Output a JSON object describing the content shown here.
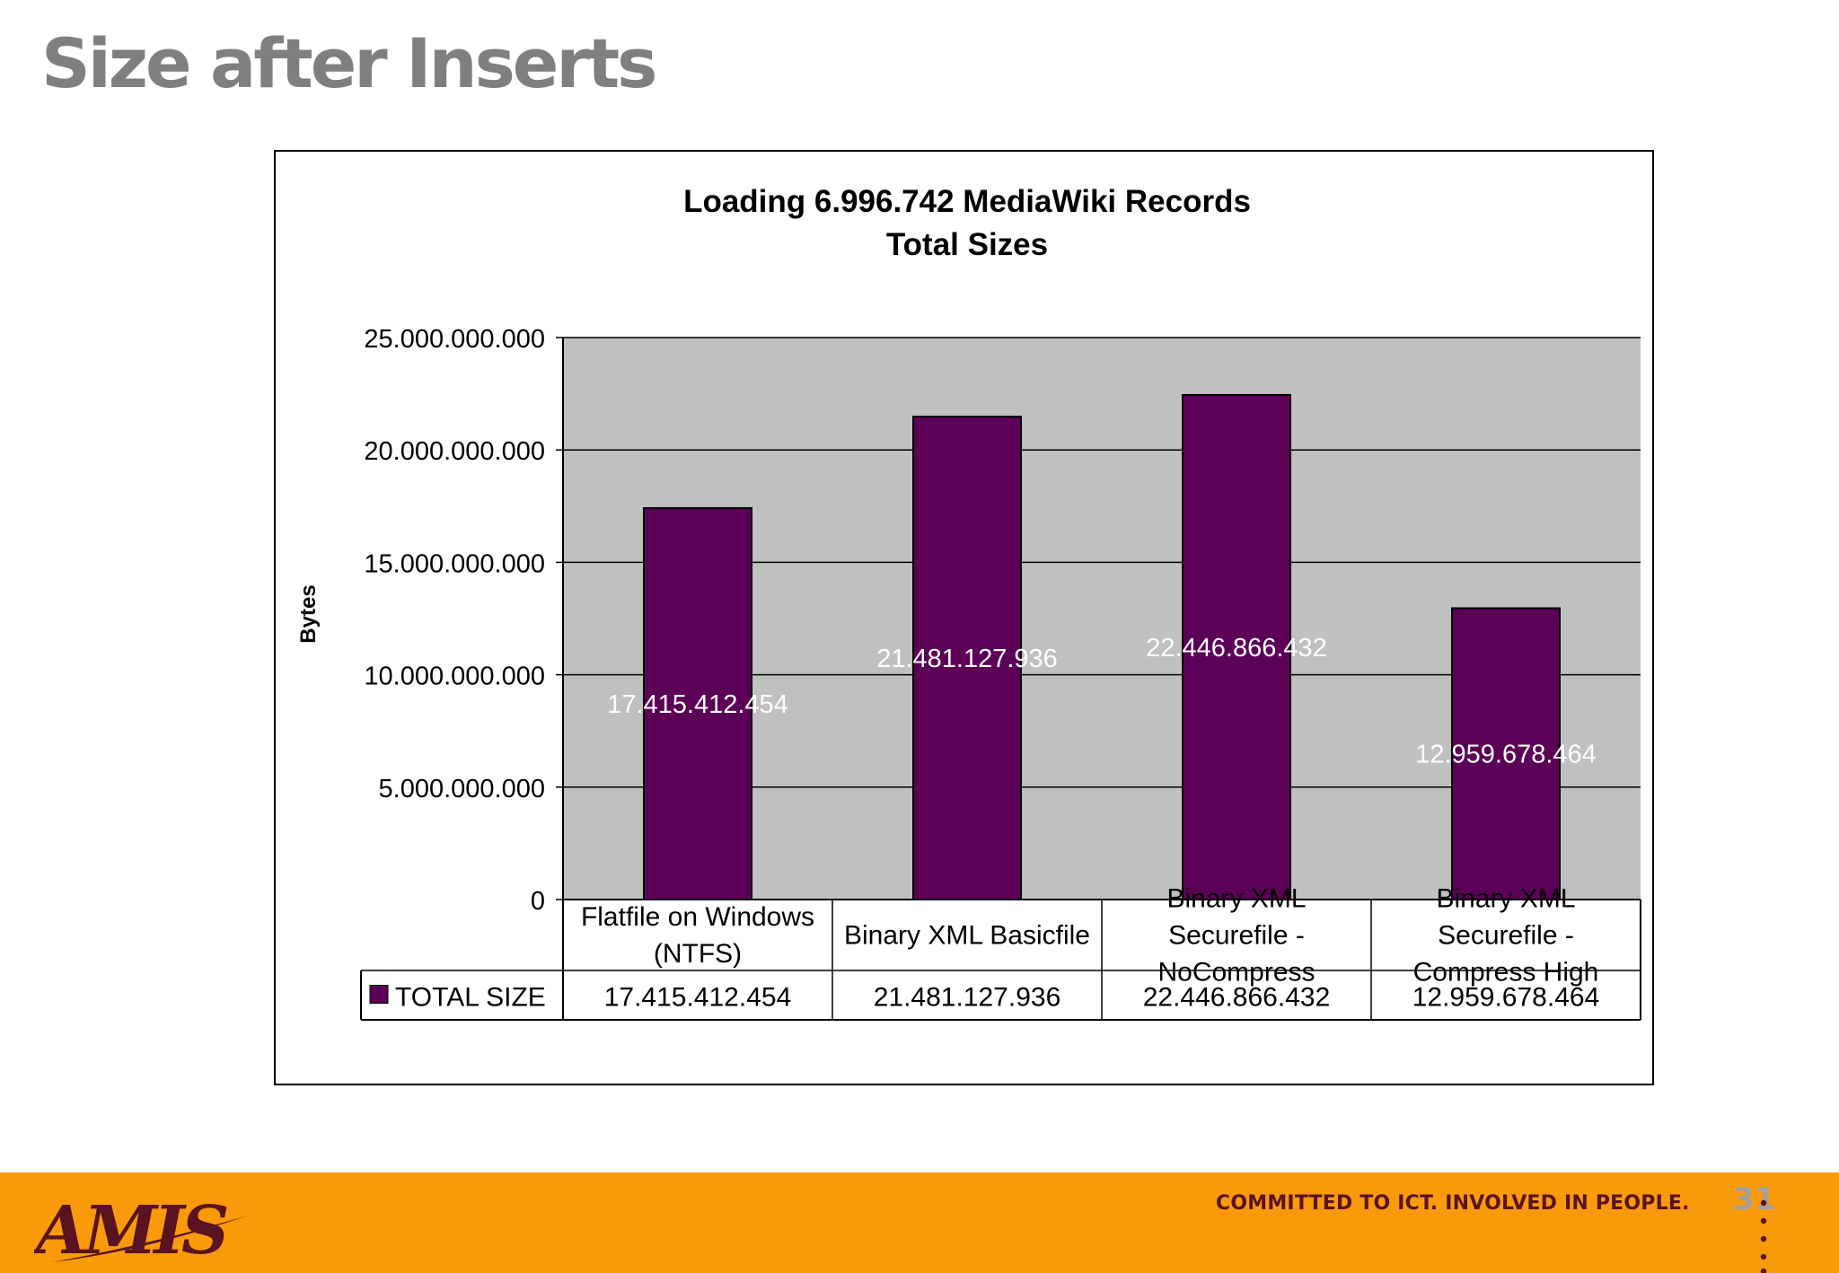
{
  "slide": {
    "title": "Size after Inserts",
    "page_number": "31"
  },
  "footer": {
    "logo_text": "AMIS",
    "slogan": "COMMITTED TO ICT. INVOLVED IN PEOPLE.",
    "background_color": "#f99a0b",
    "brand_color": "#5a1320"
  },
  "chart_data": {
    "type": "bar",
    "title": "Loading 6.996.742 MediaWiki Records",
    "subtitle": "Total Sizes",
    "xlabel": "",
    "ylabel": "Bytes",
    "ylim": [
      0,
      25000000000
    ],
    "y_ticks": [
      0,
      5000000000,
      10000000000,
      15000000000,
      20000000000,
      25000000000
    ],
    "y_tick_labels": [
      "0",
      "5.000.000.000",
      "10.000.000.000",
      "15.000.000.000",
      "20.000.000.000",
      "25.000.000.000"
    ],
    "grid": true,
    "categories": [
      [
        "Flatfile on Windows",
        "(NTFS)"
      ],
      [
        "Binary XML Basicfile"
      ],
      [
        "Binary XML",
        "Securefile -",
        "NoCompress"
      ],
      [
        "Binary XML",
        "Securefile -",
        "Compress High"
      ]
    ],
    "series": [
      {
        "name": "TOTAL SIZE",
        "color": "#5c0057",
        "values": [
          17415412454,
          21481127936,
          22446866432,
          12959678464
        ],
        "labels": [
          "17.415.412.454",
          "21.481.127.936",
          "22.446.866.432",
          "12.959.678.464"
        ]
      }
    ],
    "plot_background": "#c0c0c0",
    "data_table": true
  }
}
